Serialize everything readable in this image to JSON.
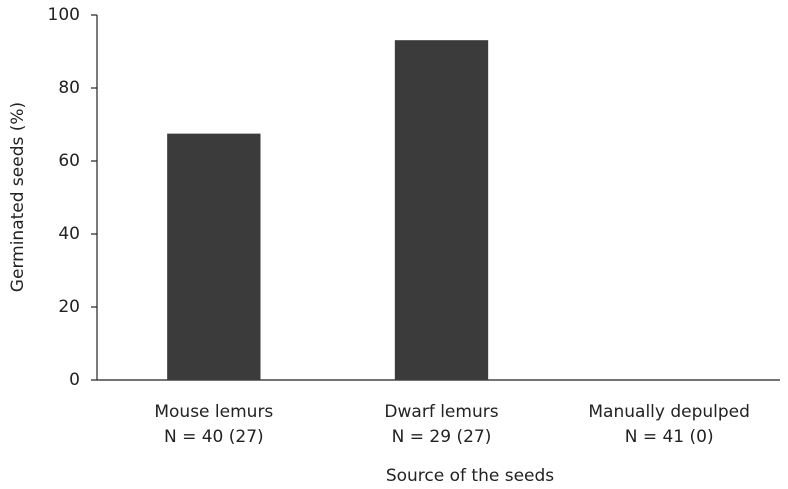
{
  "chart_data": {
    "type": "bar",
    "categories": [
      "Mouse lemurs",
      "Dwarf lemurs",
      "Manually depulped"
    ],
    "sample_sizes": [
      "N = 40 (27)",
      "N = 29 (27)",
      "N = 41 (0)"
    ],
    "values": [
      67.5,
      93.1,
      0
    ],
    "color": "#3b3b3b",
    "x_label": "Source of the seeds",
    "y_label": "Germinated seeds (%)",
    "ylim": [
      0,
      100
    ],
    "yticks": [
      0,
      20,
      40,
      60,
      80,
      100
    ],
    "grid": false
  }
}
